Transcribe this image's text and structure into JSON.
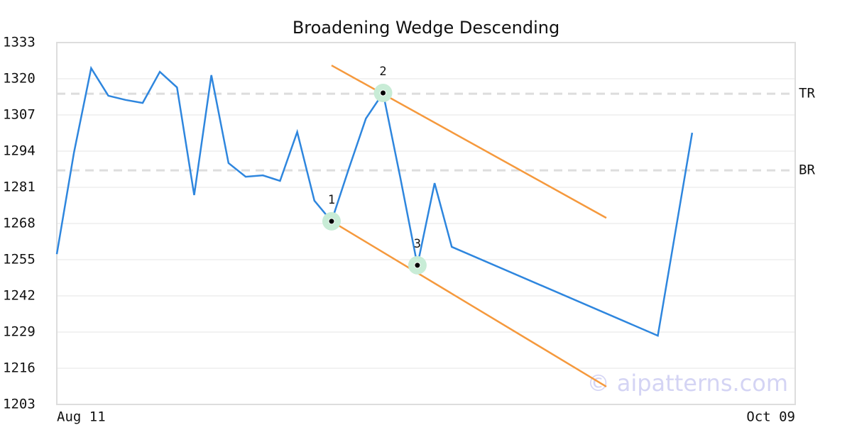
{
  "chart_data": {
    "type": "line",
    "title": "Broadening Wedge Descending",
    "x": [
      0,
      1,
      2,
      3,
      4,
      5,
      6,
      7,
      8,
      9,
      10,
      11,
      12,
      13,
      14,
      15,
      16,
      17,
      18,
      19,
      20,
      21,
      22,
      23,
      35,
      37
    ],
    "series": [
      {
        "color": "#2e86de",
        "values": [
          1257.0,
          1293.5,
          1323.8,
          1313.9,
          1312.4,
          1311.3,
          1322.5,
          1316.9,
          1278.2,
          1321.3,
          1289.7,
          1284.8,
          1285.3,
          1283.3,
          1300.9,
          1276.2,
          1268.8,
          1287.6,
          1305.7,
          1314.9,
          1284.6,
          1253.0,
          1282.5,
          1259.6,
          1227.7,
          1300.6
        ]
      }
    ],
    "trendlines": [
      {
        "color": "#f5993d",
        "x": [
          16,
          32
        ],
        "values": [
          1324.8,
          1270.0
        ]
      },
      {
        "color": "#f5993d",
        "x": [
          16,
          32
        ],
        "values": [
          1268.8,
          1209.4
        ]
      }
    ],
    "levels": [
      {
        "label": "TR",
        "value": 1314.6
      },
      {
        "label": "BR",
        "value": 1287.1
      }
    ],
    "pivots": [
      {
        "label": "1",
        "x": 16,
        "value": 1268.8
      },
      {
        "label": "2",
        "x": 19,
        "value": 1314.9
      },
      {
        "label": "3",
        "x": 21,
        "value": 1253.0
      }
    ],
    "xlim": [
      0,
      43
    ],
    "xticks": [
      {
        "value": 0,
        "label": "Aug 11"
      },
      {
        "value": 43,
        "label": "Oct 09"
      }
    ],
    "ylim": [
      1203,
      1333
    ],
    "yticks": [
      1203,
      1216,
      1229,
      1242,
      1255,
      1268,
      1281,
      1294,
      1307,
      1320,
      1333
    ],
    "grid": true,
    "watermark": "© aipatterns.com"
  }
}
